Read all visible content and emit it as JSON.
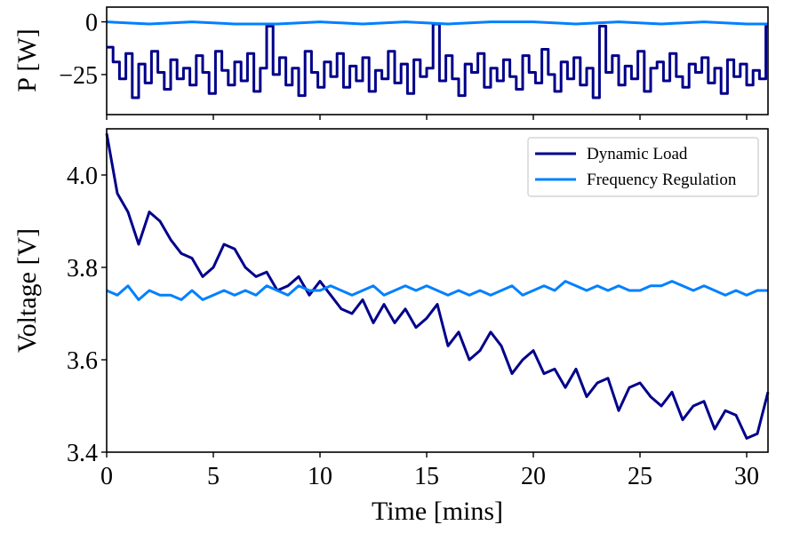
{
  "colors": {
    "dynamic_load": "#00008B",
    "frequency_regulation": "#0080FF"
  },
  "chart_data": [
    {
      "type": "line",
      "panel": "top",
      "ylabel": "P [W]",
      "xlabel": "",
      "xlim": [
        0,
        31
      ],
      "ylim": [
        -44,
        7
      ],
      "yticks": [
        0,
        -25
      ],
      "ytick_labels": [
        "0",
        "−25"
      ],
      "xticks": [
        0,
        5,
        10,
        15,
        20,
        25,
        30
      ],
      "grid": false,
      "series": [
        {
          "name": "Dynamic Load",
          "color": "#00008B",
          "x": [
            0,
            0.3,
            0.6,
            0.9,
            1.2,
            1.5,
            1.8,
            2.1,
            2.4,
            2.7,
            3.0,
            3.3,
            3.6,
            3.9,
            4.2,
            4.5,
            4.8,
            5.1,
            5.4,
            5.7,
            6.0,
            6.3,
            6.6,
            6.9,
            7.2,
            7.5,
            7.8,
            8.1,
            8.4,
            8.7,
            9.0,
            9.3,
            9.6,
            9.9,
            10.2,
            10.5,
            10.8,
            11.1,
            11.4,
            11.7,
            12.0,
            12.3,
            12.6,
            12.9,
            13.2,
            13.5,
            13.8,
            14.1,
            14.4,
            14.7,
            15.0,
            15.3,
            15.6,
            15.9,
            16.2,
            16.5,
            16.8,
            17.1,
            17.4,
            17.7,
            18.0,
            18.3,
            18.6,
            18.9,
            19.2,
            19.5,
            19.8,
            20.1,
            20.4,
            20.7,
            21.0,
            21.3,
            21.6,
            21.9,
            22.2,
            22.5,
            22.8,
            23.1,
            23.4,
            23.7,
            24.0,
            24.3,
            24.6,
            24.9,
            25.2,
            25.5,
            25.8,
            26.1,
            26.4,
            26.7,
            27.0,
            27.3,
            27.6,
            27.9,
            28.2,
            28.5,
            28.8,
            29.1,
            29.4,
            29.7,
            30.0,
            30.3,
            30.6,
            30.9
          ],
          "values": [
            -12,
            -19,
            -27,
            -15,
            -36,
            -20,
            -29,
            -14,
            -24,
            -32,
            -18,
            -27,
            -22,
            -30,
            -16,
            -24,
            -34,
            -14,
            -23,
            -30,
            -19,
            -28,
            -15,
            -33,
            -22,
            -2,
            -25,
            -17,
            -30,
            -22,
            -35,
            -14,
            -24,
            -31,
            -19,
            -26,
            -15,
            -31,
            -21,
            -28,
            -17,
            -33,
            -23,
            -27,
            -14,
            -29,
            -20,
            -34,
            -18,
            -26,
            -22,
            -1,
            -28,
            -16,
            -27,
            -35,
            -20,
            -24,
            -15,
            -31,
            -22,
            -28,
            -18,
            -26,
            -32,
            -16,
            -24,
            -29,
            -13,
            -25,
            -33,
            -19,
            -27,
            -17,
            -30,
            -22,
            -36,
            -2,
            -24,
            -16,
            -30,
            -21,
            -27,
            -14,
            -33,
            -22,
            -19,
            -28,
            -15,
            -26,
            -31,
            -20,
            -24,
            -17,
            -29,
            -22,
            -34,
            -18,
            -26,
            -20,
            -30,
            -23,
            -27,
            -2
          ]
        },
        {
          "name": "Frequency Regulation",
          "color": "#0080FF",
          "x": [
            0,
            2,
            4,
            6,
            8,
            10,
            12,
            14,
            16,
            18,
            20,
            22,
            24,
            26,
            28,
            30,
            31
          ],
          "values": [
            0,
            -1,
            0,
            -1,
            -1,
            0,
            -1,
            0,
            -1,
            0,
            0,
            -1,
            0,
            -1,
            0,
            -1,
            -1
          ]
        }
      ]
    },
    {
      "type": "line",
      "panel": "bottom",
      "ylabel": "Voltage [V]",
      "xlabel": "Time [mins]",
      "xlim": [
        0,
        31
      ],
      "ylim": [
        3.4,
        4.1
      ],
      "yticks": [
        3.4,
        3.6,
        3.8,
        4.0
      ],
      "ytick_labels": [
        "3.4",
        "3.6",
        "3.8",
        "4.0"
      ],
      "xticks": [
        0,
        5,
        10,
        15,
        20,
        25,
        30
      ],
      "xtick_labels": [
        "0",
        "5",
        "10",
        "15",
        "20",
        "25",
        "30"
      ],
      "grid": false,
      "legend_position": "top-right",
      "series": [
        {
          "name": "Dynamic Load",
          "color": "#00008B",
          "x": [
            0,
            0.5,
            1,
            1.5,
            2,
            2.5,
            3,
            3.5,
            4,
            4.5,
            5,
            5.5,
            6,
            6.5,
            7,
            7.5,
            8,
            8.5,
            9,
            9.5,
            10,
            10.5,
            11,
            11.5,
            12,
            12.5,
            13,
            13.5,
            14,
            14.5,
            15,
            15.5,
            16,
            16.5,
            17,
            17.5,
            18,
            18.5,
            19,
            19.5,
            20,
            20.5,
            21,
            21.5,
            22,
            22.5,
            23,
            23.5,
            24,
            24.5,
            25,
            25.5,
            26,
            26.5,
            27,
            27.5,
            28,
            28.5,
            29,
            29.5,
            30,
            30.5,
            31
          ],
          "values": [
            4.09,
            3.96,
            3.92,
            3.85,
            3.92,
            3.9,
            3.86,
            3.83,
            3.82,
            3.78,
            3.8,
            3.85,
            3.84,
            3.8,
            3.78,
            3.79,
            3.75,
            3.76,
            3.78,
            3.74,
            3.77,
            3.74,
            3.71,
            3.7,
            3.73,
            3.68,
            3.72,
            3.68,
            3.71,
            3.67,
            3.69,
            3.72,
            3.63,
            3.66,
            3.6,
            3.62,
            3.66,
            3.63,
            3.57,
            3.6,
            3.62,
            3.57,
            3.58,
            3.54,
            3.58,
            3.52,
            3.55,
            3.56,
            3.49,
            3.54,
            3.55,
            3.52,
            3.5,
            3.53,
            3.47,
            3.5,
            3.51,
            3.45,
            3.49,
            3.48,
            3.43,
            3.44,
            3.53
          ]
        },
        {
          "name": "Frequency Regulation",
          "color": "#0080FF",
          "x": [
            0,
            0.5,
            1,
            1.5,
            2,
            2.5,
            3,
            3.5,
            4,
            4.5,
            5,
            5.5,
            6,
            6.5,
            7,
            7.5,
            8,
            8.5,
            9,
            9.5,
            10,
            10.5,
            11,
            11.5,
            12,
            12.5,
            13,
            13.5,
            14,
            14.5,
            15,
            15.5,
            16,
            16.5,
            17,
            17.5,
            18,
            18.5,
            19,
            19.5,
            20,
            20.5,
            21,
            21.5,
            22,
            22.5,
            23,
            23.5,
            24,
            24.5,
            25,
            25.5,
            26,
            26.5,
            27,
            27.5,
            28,
            28.5,
            29,
            29.5,
            30,
            30.5,
            31
          ],
          "values": [
            3.75,
            3.74,
            3.76,
            3.73,
            3.75,
            3.74,
            3.74,
            3.73,
            3.75,
            3.73,
            3.74,
            3.75,
            3.74,
            3.75,
            3.74,
            3.76,
            3.75,
            3.74,
            3.76,
            3.75,
            3.75,
            3.76,
            3.75,
            3.74,
            3.75,
            3.76,
            3.74,
            3.75,
            3.76,
            3.75,
            3.76,
            3.75,
            3.74,
            3.75,
            3.74,
            3.75,
            3.74,
            3.75,
            3.76,
            3.74,
            3.75,
            3.76,
            3.75,
            3.77,
            3.76,
            3.75,
            3.76,
            3.75,
            3.76,
            3.75,
            3.75,
            3.76,
            3.76,
            3.77,
            3.76,
            3.75,
            3.76,
            3.75,
            3.74,
            3.75,
            3.74,
            3.75,
            3.75
          ]
        }
      ]
    }
  ]
}
